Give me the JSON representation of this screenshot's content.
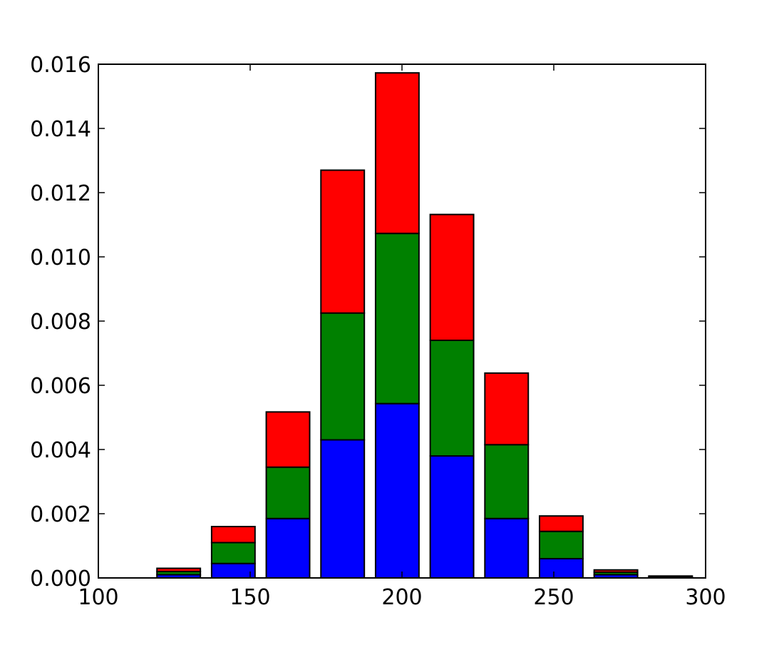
{
  "chart_data": {
    "type": "bar",
    "stacked": true,
    "title": "",
    "xlabel": "",
    "ylabel": "",
    "xlim": [
      100,
      300
    ],
    "ylim": [
      0,
      0.016
    ],
    "x_ticks": [
      "100",
      "150",
      "200",
      "250",
      "300"
    ],
    "y_ticks": [
      "0.000",
      "0.002",
      "0.004",
      "0.006",
      "0.008",
      "0.010",
      "0.012",
      "0.014",
      "0.016"
    ],
    "grid": false,
    "legend": "none",
    "bins": [
      [
        119.3,
        133.6
      ],
      [
        137.3,
        151.6
      ],
      [
        155.3,
        169.6
      ],
      [
        173.3,
        187.6
      ],
      [
        191.3,
        205.6
      ],
      [
        209.3,
        223.6
      ],
      [
        227.3,
        241.6
      ],
      [
        245.3,
        259.6
      ],
      [
        263.3,
        277.6
      ],
      [
        281.3,
        295.6
      ]
    ],
    "series": [
      {
        "color": "#0000ff",
        "values": [
          0.0001,
          0.00045,
          0.00185,
          0.0043,
          0.00543,
          0.0038,
          0.00185,
          0.0006,
          0.0001,
          2e-05
        ]
      },
      {
        "color": "#008000",
        "values": [
          0.0001,
          0.00065,
          0.0016,
          0.00395,
          0.0053,
          0.0036,
          0.0023,
          0.00085,
          8e-05,
          2e-05
        ]
      },
      {
        "color": "#ff0000",
        "values": [
          0.0001,
          0.0005,
          0.00172,
          0.00445,
          0.005,
          0.00392,
          0.00223,
          0.00048,
          7e-05,
          2e-05
        ]
      }
    ]
  }
}
